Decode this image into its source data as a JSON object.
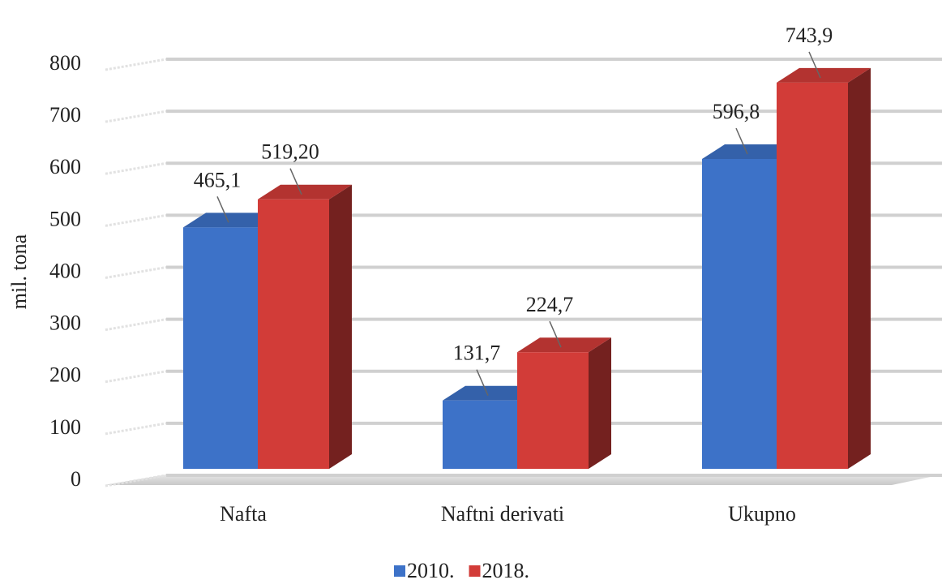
{
  "chart_data": {
    "type": "bar3d",
    "categories": [
      "Nafta",
      "Naftni derivati",
      "Ukupno"
    ],
    "series": [
      {
        "name": "2010.",
        "color": "#3d72c8",
        "values": [
          465.1,
          131.7,
          596.8
        ],
        "value_labels": [
          "465,1",
          "131,7",
          "596,8"
        ]
      },
      {
        "name": "2018.",
        "color": "#d23c38",
        "values": [
          519.2,
          224.7,
          743.9
        ],
        "value_labels": [
          "519,20",
          "224,7",
          "743,9"
        ]
      }
    ],
    "y_label": "mil. tona",
    "ylim": [
      0,
      800
    ],
    "yticks": [
      0,
      100,
      200,
      300,
      400,
      500,
      600,
      700,
      800
    ],
    "grid": true,
    "legend": "bottom"
  }
}
